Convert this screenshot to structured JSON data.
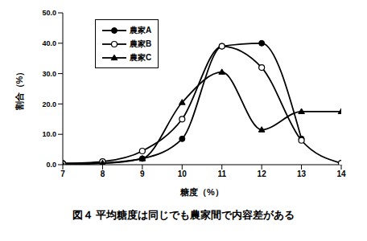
{
  "chart_data": {
    "type": "line",
    "title": "図４ 平均糖度は同じでも農家間で内容差がある",
    "x_label": "糖度（%）",
    "y_label": "割合（%）",
    "x": [
      7,
      8,
      9,
      10,
      11,
      12,
      13,
      14
    ],
    "xlim": [
      7,
      14
    ],
    "xticks": [
      7,
      8,
      9,
      10,
      11,
      12,
      13,
      14
    ],
    "ylim": [
      0,
      50
    ],
    "yticks": [
      {
        "value": 0,
        "label": "0.0"
      },
      {
        "value": 10,
        "label": "10.0"
      },
      {
        "value": 20,
        "label": "20.0"
      },
      {
        "value": 30,
        "label": "30.0"
      },
      {
        "value": 40,
        "label": "40.0"
      },
      {
        "value": 50,
        "label": "50.0"
      }
    ],
    "grid": false,
    "legend": "upper left",
    "series": [
      {
        "name": "農家A",
        "color": "#000000",
        "marker": "circle",
        "values": [
          0.5,
          0.5,
          2,
          8.5,
          39,
          40,
          8.5,
          null
        ]
      },
      {
        "name": "農家B",
        "color": "#000000",
        "marker": "open_circle",
        "values": [
          0.3,
          1,
          4.5,
          15,
          39,
          32,
          8,
          0.5
        ]
      },
      {
        "name": "農家C",
        "color": "#000000",
        "marker": "triangle",
        "values": [
          0,
          0.5,
          2,
          20.5,
          30.5,
          11.5,
          17.5,
          17.5
        ]
      }
    ]
  }
}
